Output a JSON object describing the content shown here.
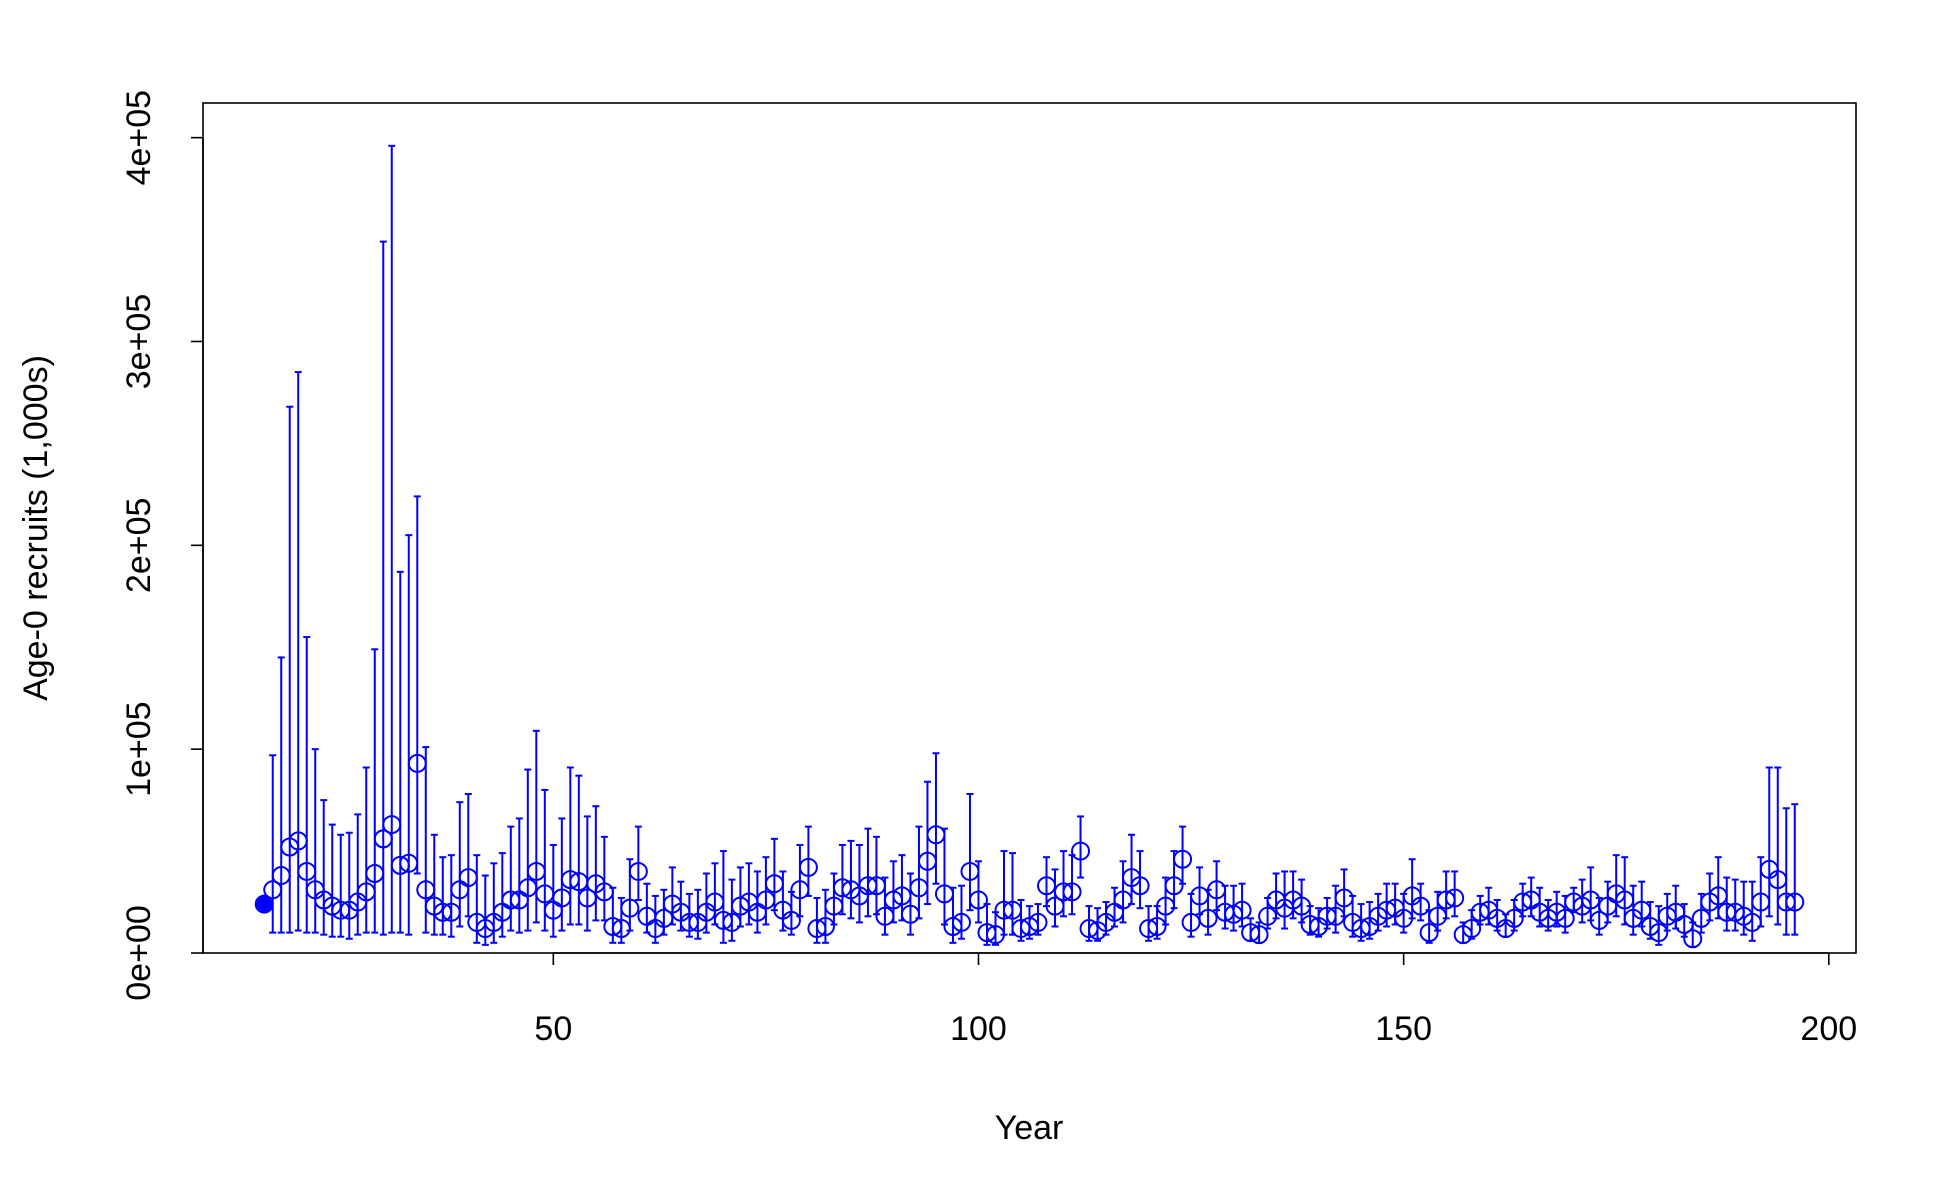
{
  "chart_data": {
    "type": "errorbar",
    "xlabel": "Year",
    "ylabel": "Age-0 recruits (1,000s)",
    "xlim": [
      8.8,
      203.2
    ],
    "ylim": [
      0,
      417000
    ],
    "xticks": [
      50,
      100,
      150,
      200
    ],
    "yticks": [
      {
        "value": 0,
        "label": "0e+00"
      },
      {
        "value": 100000,
        "label": "1e+05"
      },
      {
        "value": 200000,
        "label": "2e+05"
      },
      {
        "value": 300000,
        "label": "3e+05"
      },
      {
        "value": 400000,
        "label": "4e+05"
      }
    ],
    "initial": {
      "x": 16,
      "value": 24000,
      "color": "#0000ff"
    },
    "series": [
      {
        "color": "#0000ff",
        "x": [
          17,
          18,
          19,
          20,
          21,
          22,
          23,
          24,
          25,
          26,
          27,
          28,
          29,
          30,
          31,
          32,
          33,
          34,
          35,
          36,
          37,
          38,
          39,
          40,
          41,
          42,
          43,
          44,
          45,
          46,
          47,
          48,
          49,
          50,
          51,
          52,
          53,
          54,
          55,
          56,
          57,
          58,
          59,
          60,
          61,
          62,
          63,
          64,
          65,
          66,
          67,
          68,
          69,
          70,
          71,
          72,
          73,
          74,
          75,
          76,
          77,
          78,
          79,
          80,
          81,
          82,
          83,
          84,
          85,
          86,
          87,
          88,
          89,
          90,
          91,
          92,
          93,
          94,
          95,
          96,
          97,
          98,
          99,
          100,
          101,
          102,
          103,
          104,
          105,
          106,
          107,
          108,
          109,
          110,
          111,
          112,
          113,
          114,
          115,
          116,
          117,
          118,
          119,
          120,
          121,
          122,
          123,
          124,
          125,
          126,
          127,
          128,
          129,
          130,
          131,
          132,
          133,
          134,
          135,
          136,
          137,
          138,
          139,
          140,
          141,
          142,
          143,
          144,
          145,
          146,
          147,
          148,
          149,
          150,
          151,
          152,
          153,
          154,
          155,
          156,
          157,
          158,
          159,
          160,
          161,
          162,
          163,
          164,
          165,
          166,
          167,
          168,
          169,
          170,
          171,
          172,
          173,
          174,
          175,
          176,
          177,
          178,
          179,
          180,
          181,
          182,
          183,
          184,
          185,
          186,
          187,
          188,
          189,
          190,
          191,
          192,
          193,
          194,
          195,
          196
        ],
        "values": [
          31000,
          38000,
          52000,
          55000,
          40000,
          31000,
          26000,
          23000,
          21000,
          21000,
          25000,
          30000,
          39000,
          56000,
          63000,
          43000,
          44000,
          93000,
          31000,
          23000,
          20000,
          20000,
          31000,
          37000,
          15000,
          12000,
          15000,
          20000,
          26000,
          26000,
          32000,
          40000,
          29000,
          21000,
          27000,
          36000,
          35000,
          27000,
          34000,
          30000,
          13000,
          12000,
          22000,
          40000,
          18000,
          12000,
          17000,
          24000,
          20000,
          15000,
          15000,
          20000,
          25000,
          16000,
          15000,
          23000,
          25000,
          20000,
          26000,
          34000,
          21000,
          16000,
          31000,
          42000,
          12000,
          13000,
          23000,
          32000,
          31000,
          28000,
          33000,
          33000,
          18000,
          26000,
          28000,
          19000,
          32000,
          45000,
          58000,
          29000,
          13000,
          15000,
          40000,
          26000,
          10000,
          9000,
          21000,
          21000,
          12000,
          13000,
          15000,
          33000,
          23000,
          30000,
          30000,
          50000,
          12000,
          11000,
          15000,
          20000,
          26000,
          37000,
          33000,
          12000,
          13000,
          23000,
          33000,
          46000,
          15000,
          28000,
          17000,
          31000,
          20000,
          19000,
          21000,
          10000,
          9000,
          18000,
          26000,
          22000,
          26000,
          23000,
          14000,
          13000,
          18000,
          18000,
          27000,
          15000,
          12000,
          13000,
          18000,
          21000,
          22000,
          17000,
          28000,
          23000,
          10000,
          18000,
          26000,
          27000,
          9000,
          12000,
          20000,
          21000,
          17000,
          12000,
          17000,
          25000,
          26000,
          20000,
          17000,
          20000,
          17000,
          25000,
          23000,
          26000,
          16000,
          23000,
          29000,
          26000,
          17000,
          21000,
          13000,
          10000,
          18000,
          20000,
          14000,
          7000,
          17000,
          25000,
          28000,
          20000,
          20000,
          18000,
          15000,
          25000,
          41000,
          36000,
          25000,
          25000
        ],
        "upper": [
          97000,
          145000,
          268000,
          285000,
          155000,
          100000,
          75000,
          63000,
          58000,
          59000,
          68000,
          91000,
          149000,
          349000,
          396000,
          187000,
          205000,
          224000,
          101000,
          58000,
          47000,
          48000,
          74000,
          78000,
          48000,
          38000,
          44000,
          49000,
          62000,
          66000,
          90000,
          109000,
          80000,
          53000,
          66000,
          91000,
          87000,
          67000,
          72000,
          57000,
          32000,
          27000,
          46000,
          62000,
          34000,
          28000,
          31000,
          42000,
          35000,
          29000,
          31000,
          39000,
          44000,
          50000,
          36000,
          42000,
          44000,
          40000,
          47000,
          56000,
          40000,
          30000,
          53000,
          62000,
          27000,
          31000,
          39000,
          53000,
          55000,
          53000,
          61000,
          57000,
          37000,
          45000,
          48000,
          39000,
          62000,
          84000,
          98000,
          61000,
          32000,
          33000,
          78000,
          45000,
          24000,
          20000,
          50000,
          49000,
          26000,
          23000,
          24000,
          47000,
          41000,
          50000,
          48000,
          67000,
          23000,
          22000,
          25000,
          32000,
          45000,
          58000,
          50000,
          23000,
          23000,
          37000,
          50000,
          62000,
          29000,
          42000,
          31000,
          45000,
          33000,
          33000,
          34000,
          17000,
          15000,
          27000,
          39000,
          40000,
          40000,
          36000,
          23000,
          22000,
          27000,
          33000,
          41000,
          28000,
          24000,
          25000,
          29000,
          34000,
          34000,
          29000,
          46000,
          34000,
          21000,
          30000,
          40000,
          40000,
          15000,
          21000,
          28000,
          32000,
          26000,
          19000,
          26000,
          34000,
          37000,
          32000,
          26000,
          30000,
          28000,
          32000,
          36000,
          42000,
          27000,
          35000,
          48000,
          47000,
          33000,
          35000,
          25000,
          23000,
          29000,
          33000,
          24000,
          15000,
          29000,
          39000,
          47000,
          37000,
          36000,
          35000,
          35000,
          47000,
          91000,
          91000,
          71000,
          73000
        ],
        "lower": [
          10000,
          10000,
          10000,
          11000,
          10000,
          10000,
          9000,
          8000,
          8000,
          7000,
          9000,
          10000,
          10000,
          9000,
          10000,
          10000,
          9000,
          39000,
          10000,
          9000,
          9000,
          8000,
          13000,
          18000,
          5000,
          4000,
          5000,
          8000,
          11000,
          10000,
          11000,
          15000,
          11000,
          8000,
          11000,
          14000,
          14000,
          11000,
          16000,
          16000,
          5000,
          5000,
          11000,
          26000,
          10000,
          5000,
          9000,
          14000,
          11000,
          8000,
          7000,
          10000,
          14000,
          5000,
          6000,
          13000,
          14000,
          10000,
          14000,
          21000,
          11000,
          9000,
          18000,
          28000,
          5000,
          5000,
          14000,
          19000,
          17000,
          15000,
          18000,
          19000,
          9000,
          15000,
          16000,
          9000,
          17000,
          24000,
          34000,
          14000,
          5000,
          7000,
          21000,
          15000,
          4000,
          4000,
          9000,
          9000,
          6000,
          7000,
          9000,
          23000,
          13000,
          18000,
          19000,
          37000,
          6000,
          6000,
          9000,
          13000,
          15000,
          24000,
          22000,
          6000,
          7000,
          14000,
          22000,
          34000,
          8000,
          19000,
          9000,
          21000,
          12000,
          11000,
          13000,
          6000,
          5000,
          12000,
          17000,
          12000,
          17000,
          15000,
          9000,
          8000,
          12000,
          10000,
          18000,
          8000,
          6000,
          7000,
          11000,
          13000,
          14000,
          10000,
          17000,
          16000,
          5000,
          11000,
          17000,
          18000,
          5000,
          7000,
          14000,
          14000,
          11000,
          8000,
          11000,
          18000,
          18000,
          13000,
          11000,
          13000,
          10000,
          20000,
          15000,
          16000,
          9000,
          15000,
          18000,
          14000,
          9000,
          13000,
          7000,
          4000,
          11000,
          12000,
          8000,
          3000,
          10000,
          16000,
          17000,
          11000,
          11000,
          9000,
          6000,
          13000,
          18000,
          14000,
          9000,
          9000
        ]
      }
    ]
  }
}
